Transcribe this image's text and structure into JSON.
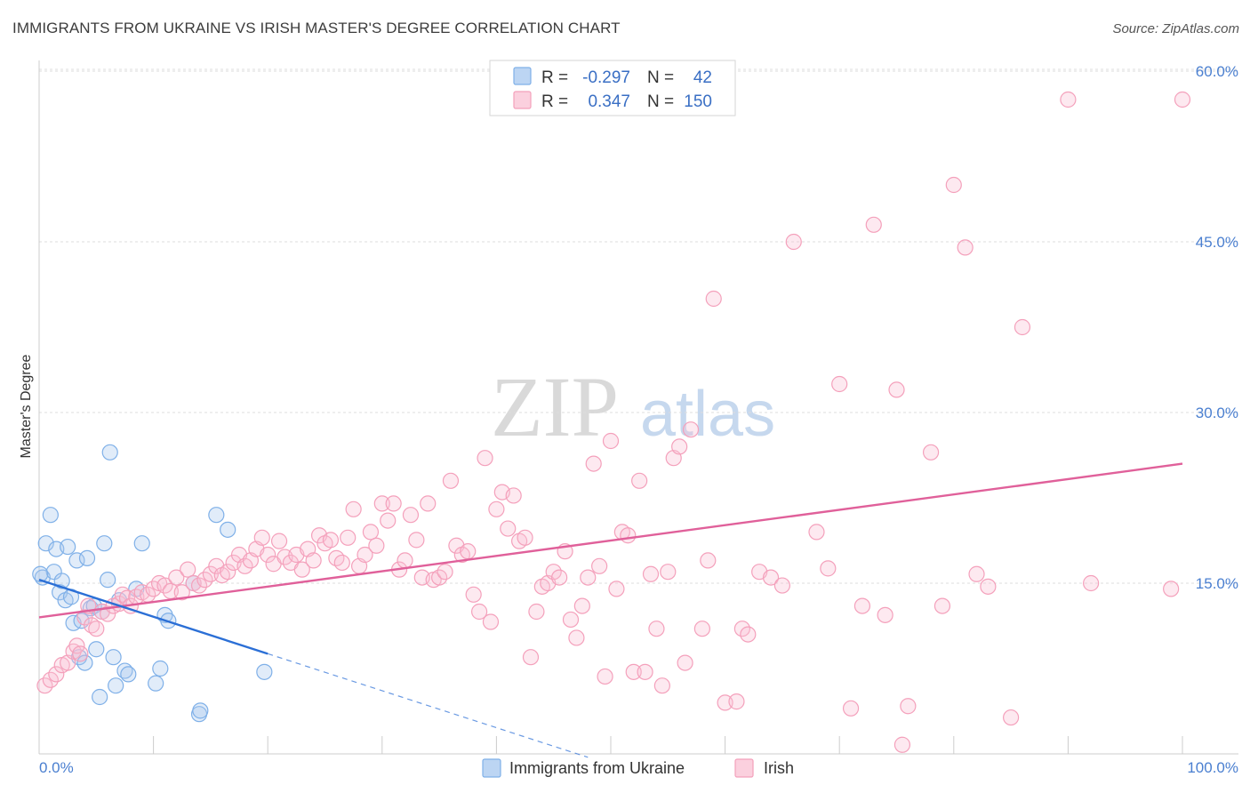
{
  "title": "IMMIGRANTS FROM UKRAINE VS IRISH MASTER'S DEGREE CORRELATION CHART",
  "source": "Source: ZipAtlas.com",
  "watermark": {
    "zip": "ZIP",
    "atlas": "atlas"
  },
  "legend": {
    "r_label": "R =",
    "n_label": "N =",
    "rows": [
      {
        "r": "-0.297",
        "n": "42",
        "color": "#7fb0e8"
      },
      {
        "r": "0.347",
        "n": "150",
        "color": "#f4a0bb"
      }
    ]
  },
  "chart_data": {
    "type": "scatter",
    "title": "IMMIGRANTS FROM UKRAINE VS IRISH MASTER'S DEGREE CORRELATION CHART",
    "xlabel": "",
    "ylabel": "Master's Degree",
    "xlim": [
      0,
      100
    ],
    "ylim": [
      0,
      60
    ],
    "x_tick_labels": [
      "0.0%",
      "100.0%"
    ],
    "y_ticks": [
      15,
      30,
      45,
      60
    ],
    "y_tick_labels": [
      "15.0%",
      "30.0%",
      "45.0%",
      "60.0%"
    ],
    "grid": true,
    "series": [
      {
        "name": "Immigrants from Ukraine",
        "color": "#7fb0e8",
        "line_color": "#2b6fd6",
        "trend": {
          "x0": 0,
          "y0": 15.3,
          "x1": 20,
          "y1": 8.8,
          "dash_to_x": 48
        },
        "points": [
          [
            0.3,
            15.5
          ],
          [
            0.6,
            18.5
          ],
          [
            1.0,
            21.0
          ],
          [
            1.3,
            16.0
          ],
          [
            1.5,
            18.0
          ],
          [
            1.8,
            14.2
          ],
          [
            2.0,
            15.2
          ],
          [
            2.3,
            13.5
          ],
          [
            2.5,
            18.2
          ],
          [
            2.8,
            13.8
          ],
          [
            3.0,
            11.5
          ],
          [
            3.3,
            17.0
          ],
          [
            3.5,
            8.5
          ],
          [
            3.7,
            11.7
          ],
          [
            4.0,
            8.0
          ],
          [
            4.2,
            17.2
          ],
          [
            4.5,
            12.8
          ],
          [
            4.8,
            13.0
          ],
          [
            5.0,
            9.2
          ],
          [
            5.3,
            5.0
          ],
          [
            5.5,
            12.5
          ],
          [
            5.7,
            18.5
          ],
          [
            6.0,
            15.3
          ],
          [
            6.2,
            26.5
          ],
          [
            6.5,
            8.5
          ],
          [
            6.7,
            6.0
          ],
          [
            7.0,
            13.5
          ],
          [
            7.5,
            7.3
          ],
          [
            7.8,
            7.0
          ],
          [
            8.5,
            14.5
          ],
          [
            9.0,
            18.5
          ],
          [
            10.2,
            6.2
          ],
          [
            10.6,
            7.5
          ],
          [
            11.0,
            12.2
          ],
          [
            11.3,
            11.7
          ],
          [
            13.5,
            15.0
          ],
          [
            14.0,
            3.5
          ],
          [
            14.1,
            3.8
          ],
          [
            15.5,
            21.0
          ],
          [
            16.5,
            19.7
          ],
          [
            19.7,
            7.2
          ],
          [
            0.1,
            15.8
          ]
        ]
      },
      {
        "name": "Irish",
        "color": "#f4a0bb",
        "line_color": "#e0609a",
        "trend": {
          "x0": 0,
          "y0": 12.0,
          "x1": 100,
          "y1": 25.5
        },
        "points": [
          [
            0.5,
            6.0
          ],
          [
            1.0,
            6.5
          ],
          [
            1.5,
            7.0
          ],
          [
            2.0,
            7.8
          ],
          [
            2.5,
            8.0
          ],
          [
            3.0,
            9.0
          ],
          [
            3.3,
            9.5
          ],
          [
            3.6,
            8.8
          ],
          [
            4.0,
            12.0
          ],
          [
            4.3,
            13.0
          ],
          [
            4.6,
            11.3
          ],
          [
            5.0,
            11.0
          ],
          [
            5.5,
            12.5
          ],
          [
            6.0,
            12.3
          ],
          [
            6.5,
            13.0
          ],
          [
            7.0,
            13.2
          ],
          [
            7.3,
            14.0
          ],
          [
            7.7,
            13.7
          ],
          [
            8.0,
            13.0
          ],
          [
            8.5,
            13.8
          ],
          [
            9.0,
            14.2
          ],
          [
            9.5,
            14.0
          ],
          [
            10.0,
            14.5
          ],
          [
            10.5,
            15.0
          ],
          [
            11.0,
            14.8
          ],
          [
            11.5,
            14.3
          ],
          [
            12.0,
            15.5
          ],
          [
            12.5,
            14.2
          ],
          [
            13.0,
            16.2
          ],
          [
            13.5,
            15.0
          ],
          [
            14.0,
            14.8
          ],
          [
            14.5,
            15.3
          ],
          [
            15.0,
            15.8
          ],
          [
            15.5,
            16.5
          ],
          [
            16.0,
            15.7
          ],
          [
            16.5,
            16.0
          ],
          [
            17.0,
            16.8
          ],
          [
            17.5,
            17.5
          ],
          [
            18.0,
            16.5
          ],
          [
            18.5,
            17.0
          ],
          [
            19.0,
            18.0
          ],
          [
            19.5,
            19.0
          ],
          [
            20.0,
            17.5
          ],
          [
            20.5,
            16.7
          ],
          [
            21.0,
            18.7
          ],
          [
            21.5,
            17.3
          ],
          [
            22.0,
            16.8
          ],
          [
            22.5,
            17.5
          ],
          [
            23.0,
            16.2
          ],
          [
            23.5,
            18.0
          ],
          [
            24.0,
            17.0
          ],
          [
            24.5,
            19.2
          ],
          [
            25.0,
            18.5
          ],
          [
            25.5,
            18.8
          ],
          [
            26.0,
            17.2
          ],
          [
            26.5,
            16.8
          ],
          [
            27.0,
            19.0
          ],
          [
            27.5,
            21.5
          ],
          [
            28.0,
            16.5
          ],
          [
            28.5,
            17.5
          ],
          [
            29.0,
            19.5
          ],
          [
            29.5,
            18.3
          ],
          [
            30.0,
            22.0
          ],
          [
            30.5,
            20.5
          ],
          [
            31.0,
            22.0
          ],
          [
            31.5,
            16.2
          ],
          [
            32.0,
            17.0
          ],
          [
            32.5,
            21.0
          ],
          [
            33.0,
            18.8
          ],
          [
            33.5,
            15.5
          ],
          [
            34.0,
            22.0
          ],
          [
            34.5,
            15.3
          ],
          [
            35.0,
            15.5
          ],
          [
            35.5,
            16.0
          ],
          [
            36.0,
            24.0
          ],
          [
            36.5,
            18.3
          ],
          [
            37.0,
            17.5
          ],
          [
            37.5,
            17.8
          ],
          [
            38.0,
            14.0
          ],
          [
            38.5,
            12.5
          ],
          [
            39.0,
            26.0
          ],
          [
            39.5,
            11.6
          ],
          [
            40.0,
            21.5
          ],
          [
            40.5,
            23.0
          ],
          [
            41.0,
            19.8
          ],
          [
            41.5,
            22.7
          ],
          [
            42.0,
            18.7
          ],
          [
            42.5,
            19.0
          ],
          [
            43.0,
            8.5
          ],
          [
            43.5,
            12.5
          ],
          [
            44.0,
            14.7
          ],
          [
            44.5,
            15.0
          ],
          [
            45.0,
            16.0
          ],
          [
            45.5,
            15.5
          ],
          [
            46.0,
            17.8
          ],
          [
            46.5,
            11.8
          ],
          [
            47.0,
            10.2
          ],
          [
            47.5,
            13.0
          ],
          [
            48.0,
            15.5
          ],
          [
            48.5,
            25.5
          ],
          [
            49.0,
            16.5
          ],
          [
            49.5,
            6.8
          ],
          [
            50.0,
            27.5
          ],
          [
            50.5,
            14.5
          ],
          [
            51.0,
            19.5
          ],
          [
            51.5,
            19.2
          ],
          [
            52.0,
            7.2
          ],
          [
            52.5,
            24.0
          ],
          [
            53.0,
            7.2
          ],
          [
            53.5,
            15.8
          ],
          [
            54.0,
            11.0
          ],
          [
            54.5,
            6.0
          ],
          [
            55.0,
            16.0
          ],
          [
            55.5,
            26.0
          ],
          [
            56.0,
            27.0
          ],
          [
            56.5,
            8.0
          ],
          [
            57.0,
            28.5
          ],
          [
            58.0,
            11.0
          ],
          [
            58.5,
            17.0
          ],
          [
            59.0,
            40.0
          ],
          [
            60.0,
            4.5
          ],
          [
            61.0,
            4.6
          ],
          [
            61.5,
            11.0
          ],
          [
            62.0,
            10.5
          ],
          [
            63.0,
            16.0
          ],
          [
            64.0,
            15.5
          ],
          [
            65.0,
            14.8
          ],
          [
            66.0,
            45.0
          ],
          [
            68.0,
            19.5
          ],
          [
            69.0,
            16.3
          ],
          [
            70.0,
            32.5
          ],
          [
            71.0,
            4.0
          ],
          [
            72.0,
            13.0
          ],
          [
            73.0,
            46.5
          ],
          [
            74.0,
            12.2
          ],
          [
            75.0,
            32.0
          ],
          [
            76.0,
            4.2
          ],
          [
            78.0,
            26.5
          ],
          [
            79.0,
            13.0
          ],
          [
            80.0,
            50.0
          ],
          [
            81.0,
            44.5
          ],
          [
            82.0,
            15.8
          ],
          [
            83.0,
            14.7
          ],
          [
            86.0,
            37.5
          ],
          [
            85.0,
            3.2
          ],
          [
            90.0,
            57.5
          ],
          [
            92.0,
            15.0
          ],
          [
            100.0,
            57.5
          ],
          [
            75.5,
            0.8
          ],
          [
            99.0,
            14.5
          ]
        ]
      }
    ]
  },
  "bottom_legend": [
    {
      "label": "Immigrants from Ukraine",
      "color": "#7fb0e8"
    },
    {
      "label": "Irish",
      "color": "#f4a0bb"
    }
  ]
}
